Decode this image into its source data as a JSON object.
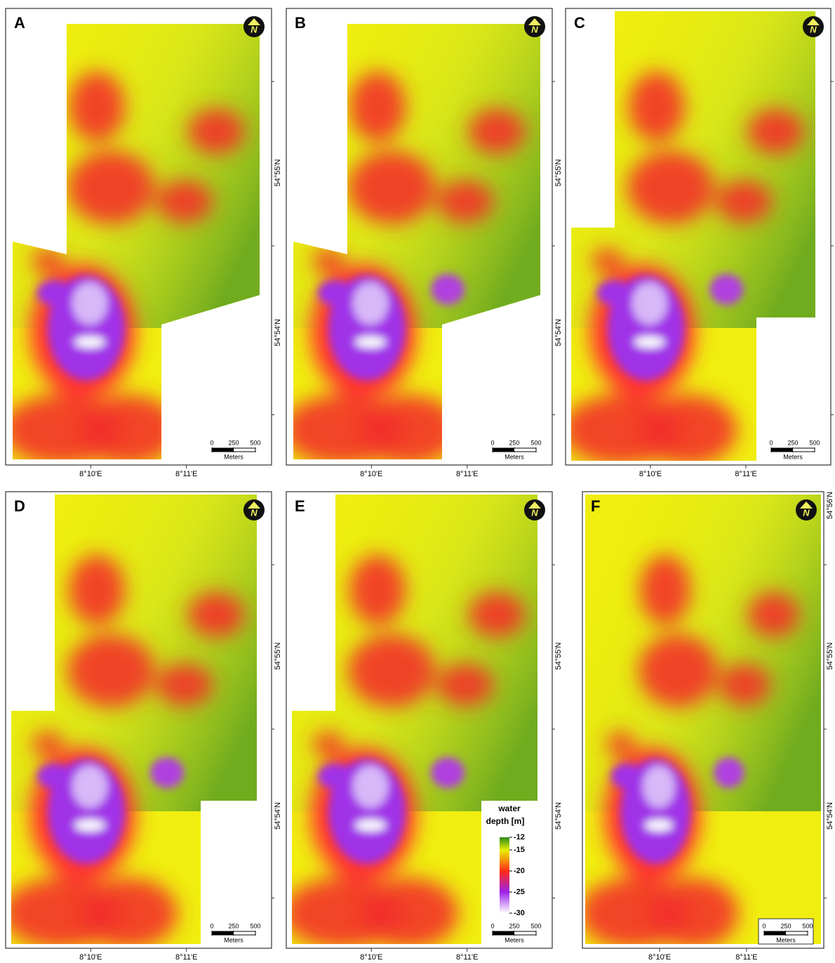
{
  "panels": [
    {
      "label": "A",
      "north": "N",
      "lon_labels": [
        "8°10'E",
        "8°11'E"
      ],
      "lat_labels": [
        "54°55'N",
        "54°54'N"
      ]
    },
    {
      "label": "B",
      "north": "N",
      "lon_labels": [
        "8°10'E",
        "8°11'E"
      ],
      "lat_labels": [
        "54°55'N",
        "54°54'N"
      ]
    },
    {
      "label": "C",
      "north": "N",
      "lon_labels": [
        "8°10'E",
        "8°11'E"
      ],
      "lat_labels": []
    },
    {
      "label": "D",
      "north": "N",
      "lon_labels": [
        "8°10'E",
        "8°11'E"
      ],
      "lat_labels": [
        "54°55'N",
        "54°54'N"
      ]
    },
    {
      "label": "E",
      "north": "N",
      "lon_labels": [
        "8°10'E",
        "8°11'E"
      ],
      "lat_labels": [
        "54°55'N",
        "54°54'N"
      ]
    },
    {
      "label": "F",
      "north": "N",
      "lon_labels": [
        "8°10'E",
        "8°11'E"
      ],
      "lat_labels": [
        "54°56'N",
        "54°55'N",
        "54°54'N"
      ]
    }
  ],
  "scale_bar": {
    "ticks": [
      0,
      250,
      500
    ],
    "unit": "Meters"
  },
  "legend": {
    "title_lines": [
      "water",
      "depth [m]"
    ],
    "ticks": [
      -12,
      -15,
      -20,
      -25,
      -30
    ]
  }
}
